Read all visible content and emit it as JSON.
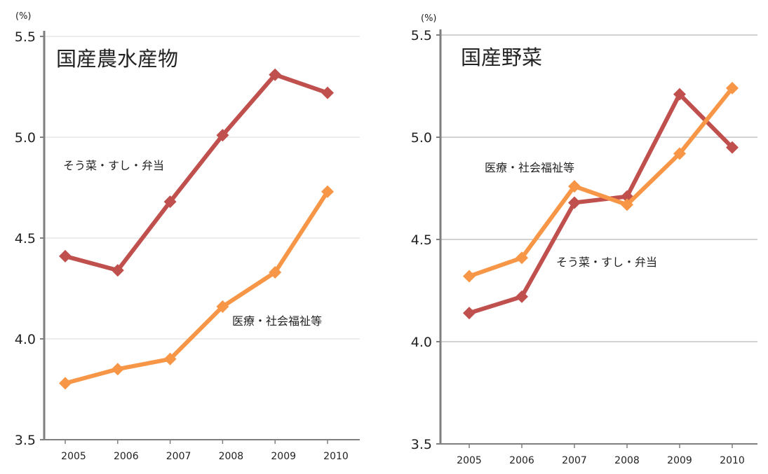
{
  "colors": {
    "series_red": "#c0504d",
    "series_orange": "#f79646",
    "axis": "#7f7f7f"
  },
  "chart_data": [
    {
      "type": "line",
      "title": "国産農水産物",
      "unit_label": "(%)",
      "x": [
        "2005",
        "2006",
        "2007",
        "2008",
        "2009",
        "2010"
      ],
      "yticks": [
        "3.5",
        "4.0",
        "4.5",
        "5.0",
        "5.5"
      ],
      "ylim": [
        3.5,
        5.5
      ],
      "grid": true,
      "series": [
        {
          "name": "そう菜・すし・弁当",
          "color": "#c0504d",
          "values": [
            4.41,
            4.34,
            4.68,
            5.01,
            5.31,
            5.22
          ]
        },
        {
          "name": "医療・社会福祉等",
          "color": "#f79646",
          "values": [
            3.78,
            3.85,
            3.9,
            4.16,
            4.33,
            4.73
          ]
        }
      ]
    },
    {
      "type": "line",
      "title": "国産野菜",
      "unit_label": "(%)",
      "x": [
        "2005",
        "2006",
        "2007",
        "2008",
        "2009",
        "2010"
      ],
      "yticks": [
        "3.5",
        "4.0",
        "4.5",
        "5.0",
        "5.5"
      ],
      "ylim": [
        3.5,
        5.5
      ],
      "grid": true,
      "series": [
        {
          "name": "そう菜・すし・弁当",
          "color": "#c0504d",
          "values": [
            4.14,
            4.22,
            4.68,
            4.71,
            5.21,
            4.95
          ]
        },
        {
          "name": "医療・社会福祉等",
          "color": "#f79646",
          "values": [
            4.32,
            4.41,
            4.76,
            4.67,
            4.92,
            5.24
          ]
        }
      ]
    }
  ]
}
